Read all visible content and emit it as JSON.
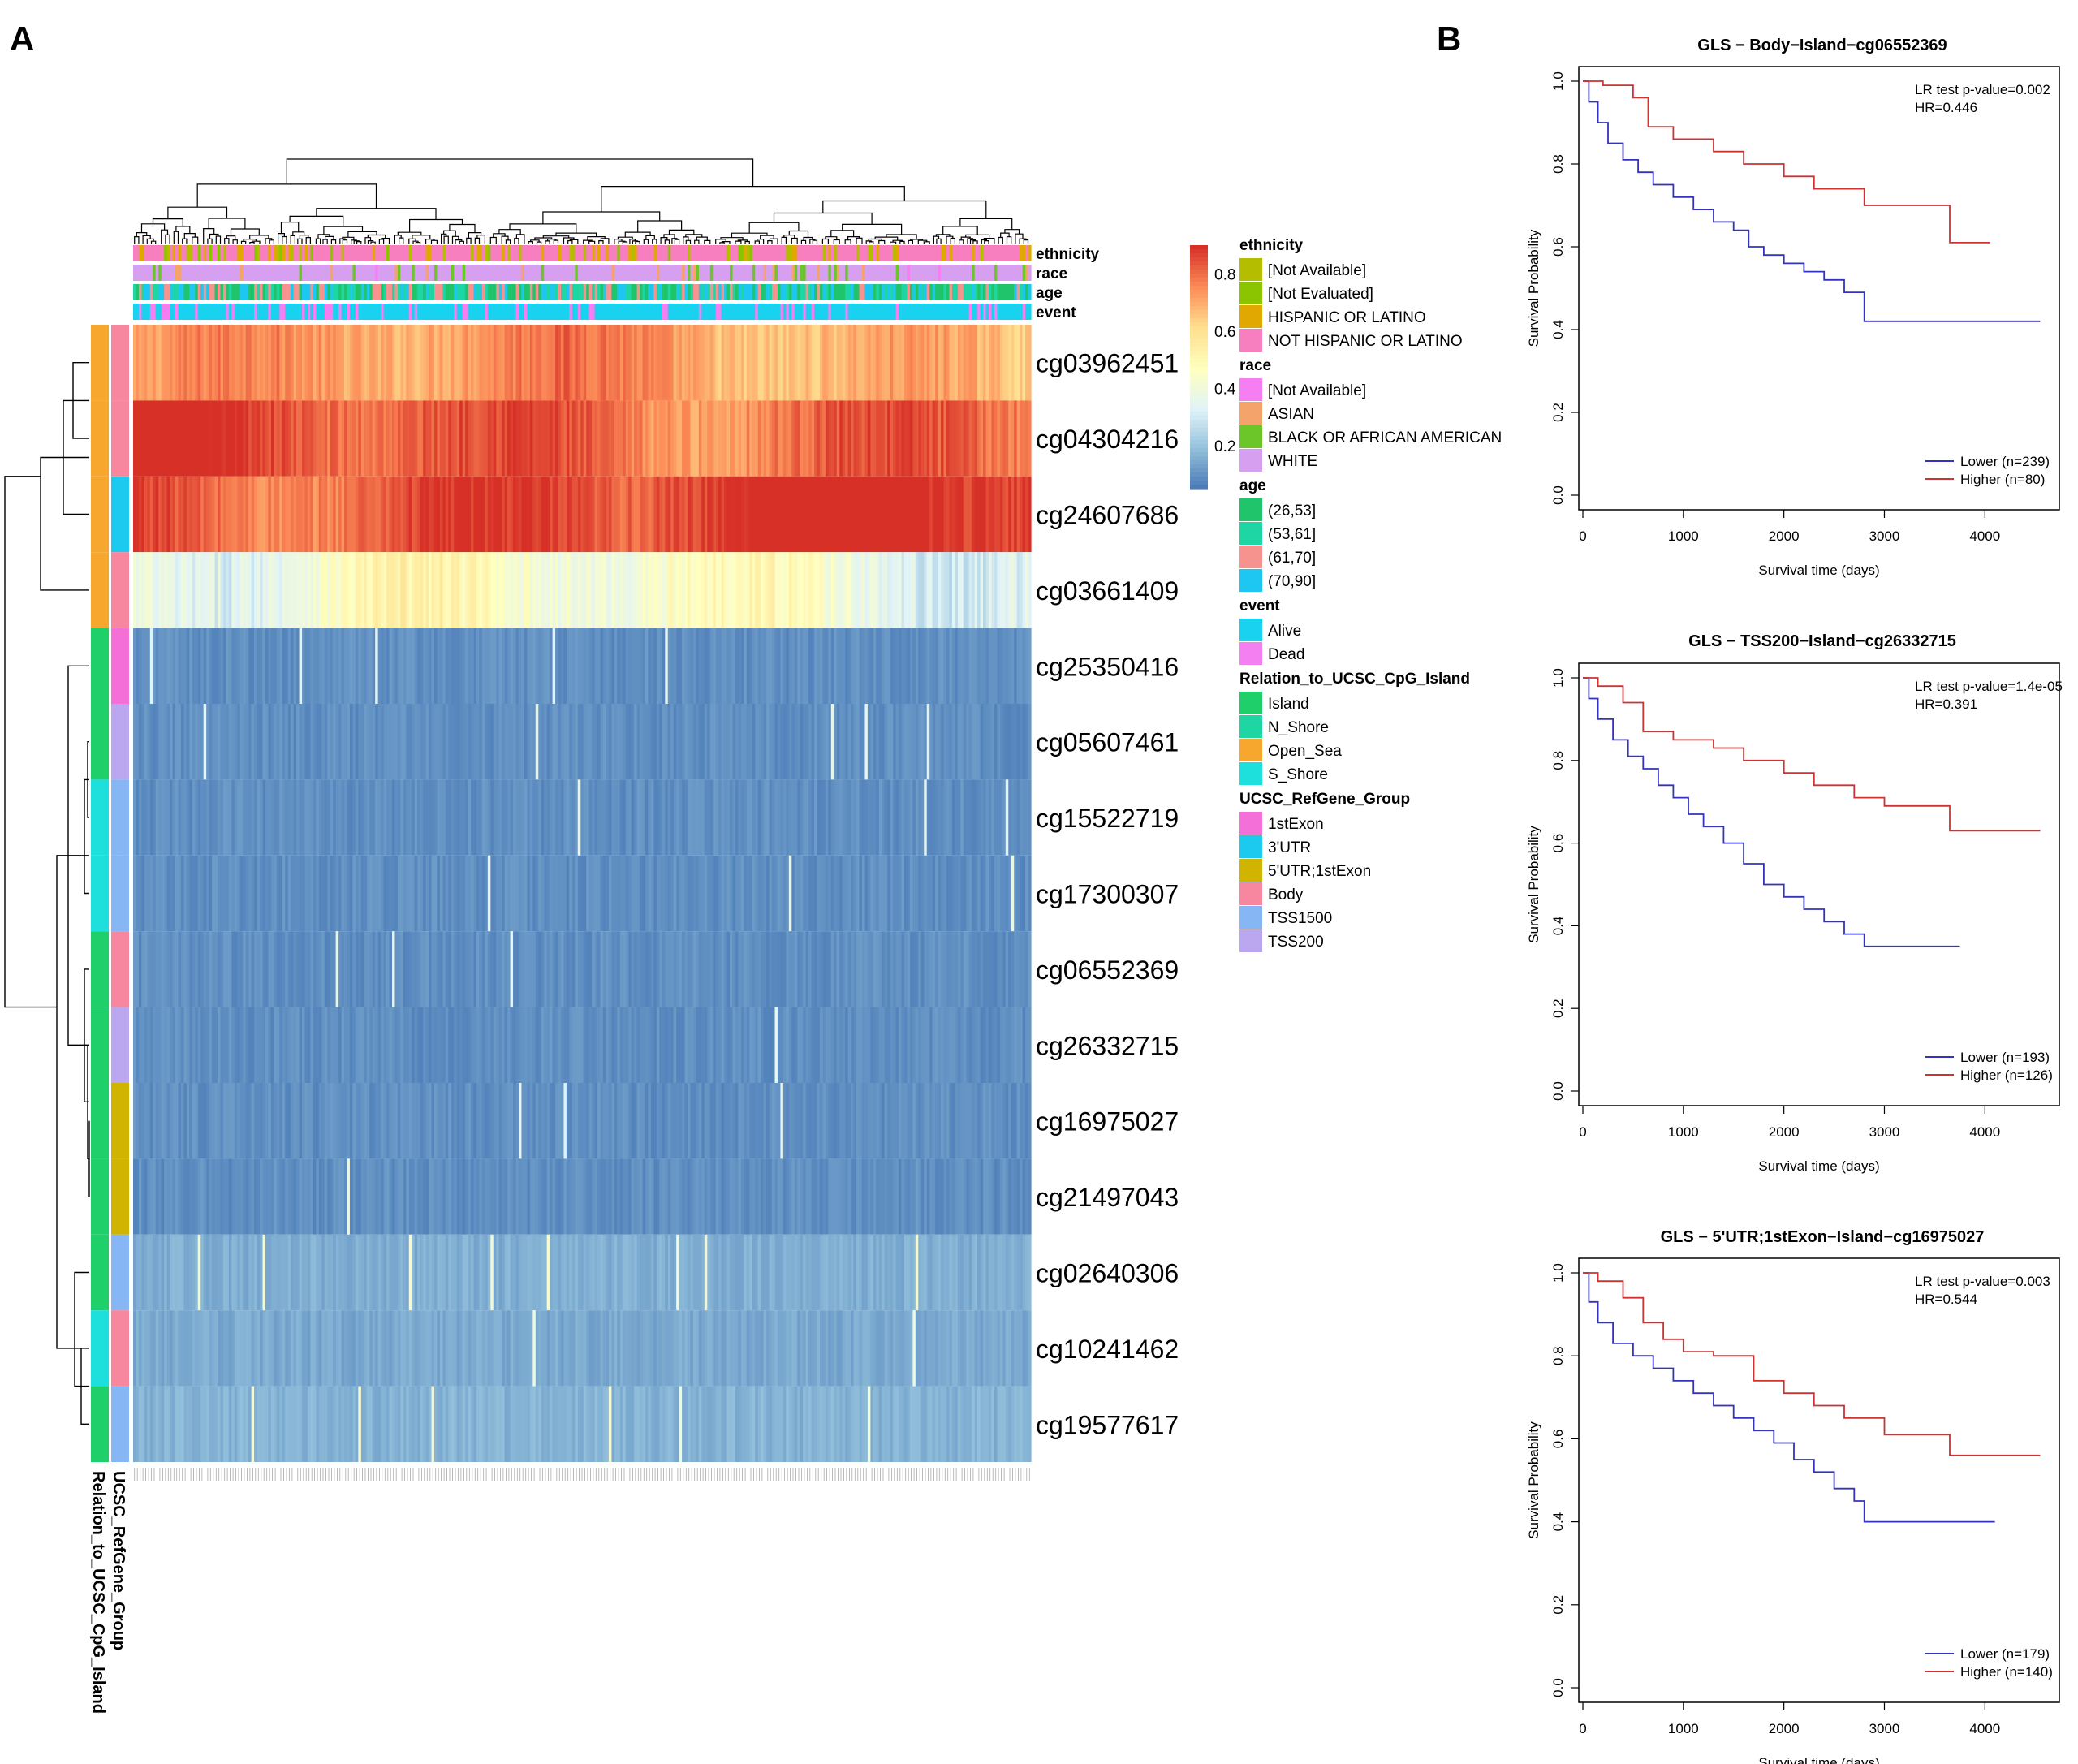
{
  "panels": {
    "a": "A",
    "b": "B"
  },
  "chart_data": [
    {
      "type": "heatmap",
      "title": "",
      "rows": [
        "cg03962451",
        "cg04304216",
        "cg24607686",
        "cg03661409",
        "cg25350416",
        "cg05607461",
        "cg15522719",
        "cg17300307",
        "cg06552369",
        "cg26332715",
        "cg16975027",
        "cg21497043",
        "cg02640306",
        "cg10241462",
        "cg19577617"
      ],
      "row_mean_beta": [
        0.7,
        0.85,
        0.88,
        0.4,
        0.1,
        0.1,
        0.1,
        0.1,
        0.1,
        0.1,
        0.1,
        0.1,
        0.16,
        0.15,
        0.17
      ],
      "n_samples": 319,
      "colorbar": {
        "ticks": [
          "0.8",
          "0.6",
          "0.4",
          "0.2"
        ],
        "tick_values": [
          0.8,
          0.6,
          0.4,
          0.2
        ],
        "range": [
          0.05,
          0.9
        ],
        "colors": [
          "#4575b4",
          "#91bfdb",
          "#e0f3f8",
          "#ffffbf",
          "#fee090",
          "#fc8d59",
          "#d73027"
        ]
      },
      "top_annotation_labels": [
        "ethnicity",
        "race",
        "age",
        "event"
      ],
      "row_annotation_labels": [
        "UCSC_RefGene_Group",
        "Relation_to_UCSC_CpG_Island"
      ],
      "row_annotations": {
        "Relation_to_UCSC_CpG_Island": [
          "Open_Sea",
          "Open_Sea",
          "Open_Sea",
          "Open_Sea",
          "Island",
          "Island",
          "S_Shore",
          "S_Shore",
          "Island",
          "Island",
          "Island",
          "Island",
          "Island",
          "S_Shore",
          "Island"
        ],
        "UCSC_RefGene_Group": [
          "Body",
          "Body",
          "3'UTR",
          "Body",
          "1stExon",
          "TSS200",
          "TSS1500",
          "TSS1500",
          "Body",
          "TSS200",
          "5'UTR;1stExon",
          "5'UTR;1stExon",
          "TSS1500",
          "Body",
          "TSS1500"
        ]
      },
      "legend": [
        {
          "title": "ethnicity",
          "items": [
            {
              "label": "[Not Available]",
              "color": "#b5bd00"
            },
            {
              "label": "[Not Evaluated]",
              "color": "#8bc400"
            },
            {
              "label": "HISPANIC OR LATINO",
              "color": "#e0a800"
            },
            {
              "label": "NOT HISPANIC OR LATINO",
              "color": "#f77fbf"
            }
          ]
        },
        {
          "title": "race",
          "items": [
            {
              "label": "[Not Available]",
              "color": "#f57ef2"
            },
            {
              "label": "ASIAN",
              "color": "#f4a36a"
            },
            {
              "label": "BLACK OR AFRICAN AMERICAN",
              "color": "#6cc62a"
            },
            {
              "label": "WHITE",
              "color": "#d79ff0"
            }
          ]
        },
        {
          "title": "age",
          "items": [
            {
              "label": "(26,53]",
              "color": "#1fc46b"
            },
            {
              "label": "(53,61]",
              "color": "#1ed6a3"
            },
            {
              "label": "(61,70]",
              "color": "#f7938e"
            },
            {
              "label": "(70,90]",
              "color": "#1ec7f2"
            }
          ]
        },
        {
          "title": "event",
          "items": [
            {
              "label": "Alive",
              "color": "#18d2f0"
            },
            {
              "label": "Dead",
              "color": "#f47ff0"
            }
          ]
        },
        {
          "title": "Relation_to_UCSC_CpG_Island",
          "items": [
            {
              "label": "Island",
              "color": "#1fcf6a"
            },
            {
              "label": "N_Shore",
              "color": "#1dd6a4"
            },
            {
              "label": "Open_Sea",
              "color": "#f7a72e"
            },
            {
              "label": "S_Shore",
              "color": "#1ddfdc"
            }
          ]
        },
        {
          "title": "UCSC_RefGene_Group",
          "items": [
            {
              "label": "1stExon",
              "color": "#f56fd8"
            },
            {
              "label": "3'UTR",
              "color": "#1ccaf0"
            },
            {
              "label": "5'UTR;1stExon",
              "color": "#d1b400"
            },
            {
              "label": "Body",
              "color": "#f6879f"
            },
            {
              "label": "TSS1500",
              "color": "#86b7f4"
            },
            {
              "label": "TSS200",
              "color": "#bba7f0"
            }
          ]
        }
      ]
    },
    {
      "type": "line",
      "title": "GLS − Body−Island−cg06552369",
      "xlabel": "Survival time (days)",
      "ylabel": "Survival Probability",
      "xlim": [
        0,
        4700
      ],
      "ylim": [
        0,
        1
      ],
      "xticks": [
        "0",
        "1000",
        "2000",
        "3000",
        "4000"
      ],
      "yticks": [
        "0.0",
        "0.2",
        "0.4",
        "0.6",
        "0.8",
        "1.0"
      ],
      "annotation": [
        "LR test p-value=0.002",
        "HR=0.446"
      ],
      "legend_position": "bottom-right",
      "series": [
        {
          "name": "Lower (n=239)",
          "color": "#3333bb",
          "x": [
            0,
            60,
            150,
            250,
            400,
            550,
            700,
            900,
            1100,
            1300,
            1500,
            1650,
            1800,
            2000,
            2200,
            2400,
            2600,
            2800,
            3000,
            4550
          ],
          "y": [
            1.0,
            0.95,
            0.9,
            0.85,
            0.81,
            0.78,
            0.75,
            0.72,
            0.69,
            0.66,
            0.64,
            0.6,
            0.58,
            0.56,
            0.54,
            0.52,
            0.49,
            0.42,
            0.42,
            0.42
          ]
        },
        {
          "name": "Higher (n=80)",
          "color": "#cc3333",
          "x": [
            0,
            200,
            500,
            650,
            900,
            1300,
            1600,
            2000,
            2300,
            2800,
            3600,
            3650,
            4050
          ],
          "y": [
            1.0,
            0.99,
            0.96,
            0.89,
            0.86,
            0.83,
            0.8,
            0.77,
            0.74,
            0.7,
            0.7,
            0.61,
            0.61
          ]
        }
      ]
    },
    {
      "type": "line",
      "title": "GLS − TSS200−Island−cg26332715",
      "xlabel": "Survival time (days)",
      "ylabel": "Survival Probability",
      "xlim": [
        0,
        4700
      ],
      "ylim": [
        0,
        1
      ],
      "xticks": [
        "0",
        "1000",
        "2000",
        "3000",
        "4000"
      ],
      "yticks": [
        "0.0",
        "0.2",
        "0.4",
        "0.6",
        "0.8",
        "1.0"
      ],
      "annotation": [
        "LR test p-value=1.4e-05",
        "HR=0.391"
      ],
      "legend_position": "bottom-right",
      "series": [
        {
          "name": "Lower (n=193)",
          "color": "#3333bb",
          "x": [
            0,
            60,
            150,
            300,
            450,
            600,
            750,
            900,
            1050,
            1200,
            1400,
            1600,
            1800,
            2000,
            2200,
            2400,
            2600,
            2800,
            3000,
            3750
          ],
          "y": [
            1.0,
            0.95,
            0.9,
            0.85,
            0.81,
            0.78,
            0.74,
            0.71,
            0.67,
            0.64,
            0.6,
            0.55,
            0.5,
            0.47,
            0.44,
            0.41,
            0.38,
            0.35,
            0.35,
            0.35
          ]
        },
        {
          "name": "Higher (n=126)",
          "color": "#cc3333",
          "x": [
            0,
            150,
            400,
            600,
            900,
            1300,
            1600,
            2000,
            2300,
            2700,
            3000,
            3600,
            3650,
            4550
          ],
          "y": [
            1.0,
            0.98,
            0.94,
            0.87,
            0.85,
            0.83,
            0.8,
            0.77,
            0.74,
            0.71,
            0.69,
            0.69,
            0.63,
            0.63
          ]
        }
      ]
    },
    {
      "type": "line",
      "title": "GLS − 5'UTR;1stExon−Island−cg16975027",
      "xlabel": "Survival time (days)",
      "ylabel": "Survival Probability",
      "xlim": [
        0,
        4700
      ],
      "ylim": [
        0,
        1
      ],
      "xticks": [
        "0",
        "1000",
        "2000",
        "3000",
        "4000"
      ],
      "yticks": [
        "0.0",
        "0.2",
        "0.4",
        "0.6",
        "0.8",
        "1.0"
      ],
      "annotation": [
        "LR test p-value=0.003",
        "HR=0.544"
      ],
      "legend_position": "bottom-right",
      "series": [
        {
          "name": "Lower (n=179)",
          "color": "#3333bb",
          "x": [
            0,
            60,
            150,
            300,
            500,
            700,
            900,
            1100,
            1300,
            1500,
            1700,
            1900,
            2100,
            2300,
            2500,
            2700,
            2800,
            3000,
            4100
          ],
          "y": [
            1.0,
            0.93,
            0.88,
            0.83,
            0.8,
            0.77,
            0.74,
            0.71,
            0.68,
            0.65,
            0.62,
            0.59,
            0.55,
            0.52,
            0.48,
            0.45,
            0.4,
            0.4,
            0.4
          ]
        },
        {
          "name": "Higher (n=140)",
          "color": "#cc3333",
          "x": [
            0,
            150,
            400,
            600,
            800,
            1000,
            1300,
            1600,
            1700,
            2000,
            2300,
            2600,
            3000,
            3600,
            3650,
            4550
          ],
          "y": [
            1.0,
            0.98,
            0.94,
            0.88,
            0.84,
            0.81,
            0.8,
            0.8,
            0.74,
            0.71,
            0.68,
            0.65,
            0.61,
            0.61,
            0.56,
            0.56
          ]
        }
      ]
    }
  ]
}
